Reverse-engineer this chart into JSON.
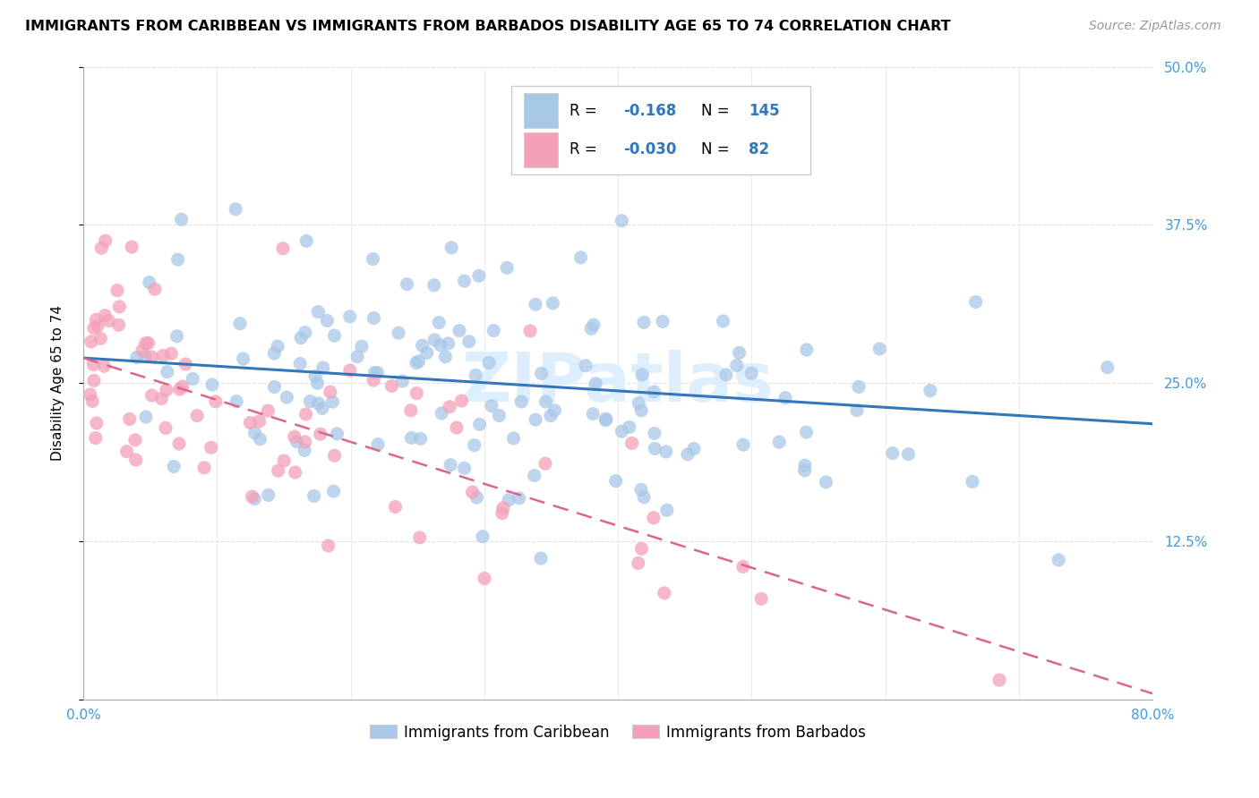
{
  "title": "IMMIGRANTS FROM CARIBBEAN VS IMMIGRANTS FROM BARBADOS DISABILITY AGE 65 TO 74 CORRELATION CHART",
  "source": "Source: ZipAtlas.com",
  "ylabel": "Disability Age 65 to 74",
  "xlim": [
    0.0,
    0.8
  ],
  "ylim": [
    0.0,
    0.5
  ],
  "blue_color": "#A8C8E8",
  "pink_color": "#F4A0B8",
  "trendline_blue": "#3377BB",
  "trendline_pink": "#DD6688",
  "tick_color": "#4499DD",
  "grid_color": "#DDDDDD",
  "watermark_color": "#DDEEFF",
  "blue_trend_x": [
    0.0,
    0.8
  ],
  "blue_trend_y": [
    0.27,
    0.218
  ],
  "pink_trend_x": [
    0.0,
    0.8
  ],
  "pink_trend_y": [
    0.27,
    0.005
  ],
  "title_fontsize": 11.5,
  "label_fontsize": 11,
  "tick_fontsize": 11,
  "source_fontsize": 10,
  "watermark_fontsize": 55
}
